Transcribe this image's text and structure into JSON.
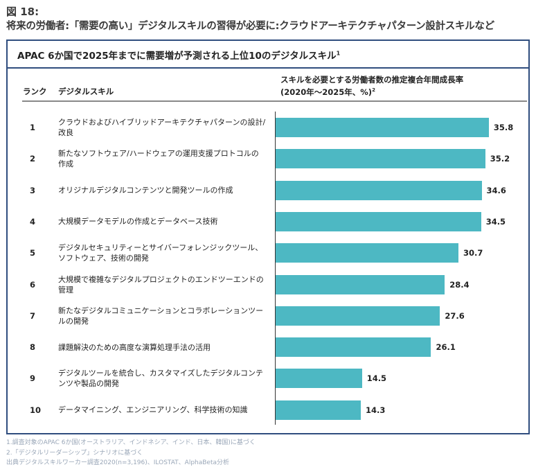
{
  "figure_label": "図 18:",
  "subtitle": "将来の労働者:「需要の高い」デジタルスキルの習得が必要に:クラウドアーキテクチャパターン設計スキルなど",
  "chart_data": {
    "type": "bar",
    "orientation": "horizontal",
    "title": "APAC 6か国で2025年までに需要増が予測される上位10のデジタルスキル",
    "title_note": "1",
    "col_rank": "ランク",
    "col_skill": "デジタルスキル",
    "col_value_line1": "スキルを必要とする労働者数の推定複合年間成長率",
    "col_value_line2": "(2020年～2025年、%)",
    "col_value_note": "2",
    "bar_color": "#4db8c3",
    "rows": [
      {
        "rank": "1",
        "skill": "クラウドおよびハイブリッドアーキテクチャパターンの設計/改良",
        "value": 35.8
      },
      {
        "rank": "2",
        "skill": "新たなソフトウェア/ハードウェアの運用支援プロトコルの作成",
        "value": 35.2
      },
      {
        "rank": "3",
        "skill": "オリジナルデジタルコンテンツと開発ツールの作成",
        "value": 34.6
      },
      {
        "rank": "4",
        "skill": "大規模データモデルの作成とデータベース技術",
        "value": 34.5
      },
      {
        "rank": "5",
        "skill": "デジタルセキュリティーとサイバーフォレンジックツール、ソフトウェア、技術の開発",
        "value": 30.7
      },
      {
        "rank": "6",
        "skill": "大規模で複雑なデジタルプロジェクトのエンドツーエンドの管理",
        "value": 28.4
      },
      {
        "rank": "7",
        "skill": "新たなデジタルコミュニケーションとコラボレーションツールの開発",
        "value": 27.6
      },
      {
        "rank": "8",
        "skill": "課題解決のための高度な演算処理手法の活用",
        "value": 26.1
      },
      {
        "rank": "9",
        "skill": "デジタルツールを統合し、カスタマイズしたデジタルコンテンツや製品の開発",
        "value": 14.5
      },
      {
        "rank": "10",
        "skill": "データマイニング、エンジニアリング、科学技術の知識",
        "value": 14.3
      }
    ]
  },
  "notes": [
    "1.調査対象のAPAC 6か国(オーストラリア、インドネシア、インド、日本、韓国)に基づく",
    "2.「デジタルリーダーシップ」シナリオに基づく",
    "出典デジタルスキルワーカー調査2020(n=3,196)、ILOSTAT、AlphaBeta分析"
  ]
}
